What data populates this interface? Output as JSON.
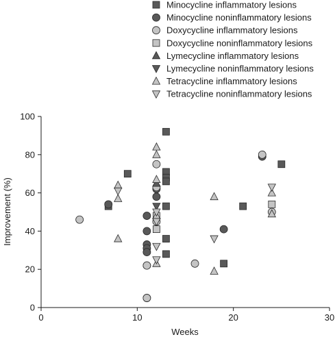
{
  "chart_data": {
    "type": "scatter",
    "title": "",
    "xlabel": "Weeks",
    "ylabel": "Improvement (%)",
    "xlim": [
      0,
      30
    ],
    "ylim": [
      0,
      100
    ],
    "xticks": [
      0,
      10,
      20,
      30
    ],
    "yticks": [
      0,
      20,
      40,
      60,
      80,
      100
    ],
    "grid": false,
    "legend_position": "top-right",
    "series": [
      {
        "name": "Minocycline inflammatory lesions",
        "marker": "square",
        "fill": "#595959",
        "points": [
          [
            7,
            53
          ],
          [
            9,
            70
          ],
          [
            13,
            92
          ],
          [
            13,
            71
          ],
          [
            13,
            68
          ],
          [
            13,
            66
          ],
          [
            13,
            53
          ],
          [
            13,
            36
          ],
          [
            13,
            28
          ],
          [
            19,
            23
          ],
          [
            21,
            53
          ],
          [
            25,
            75
          ]
        ]
      },
      {
        "name": "Minocycline noninflammatory lesions",
        "marker": "circle",
        "fill": "#595959",
        "points": [
          [
            7,
            54
          ],
          [
            11,
            48
          ],
          [
            11,
            40
          ],
          [
            11,
            33
          ],
          [
            11,
            31
          ],
          [
            11,
            29
          ],
          [
            11,
            22
          ],
          [
            11,
            5
          ],
          [
            12,
            62
          ],
          [
            12,
            58
          ],
          [
            19,
            41
          ],
          [
            23,
            79
          ]
        ]
      },
      {
        "name": "Doxycycline inflammatory lesions",
        "marker": "circle",
        "fill": "#c4c4c4",
        "points": [
          [
            4,
            46
          ],
          [
            11,
            5
          ],
          [
            11,
            22
          ],
          [
            12,
            75
          ],
          [
            12,
            63
          ],
          [
            12,
            45
          ],
          [
            16,
            23
          ],
          [
            23,
            80
          ],
          [
            24,
            50
          ]
        ]
      },
      {
        "name": "Doxycycline noninflammatory lesions",
        "marker": "square",
        "fill": "#c4c4c4",
        "points": [
          [
            12,
            48
          ],
          [
            12,
            41
          ],
          [
            24,
            54
          ]
        ]
      },
      {
        "name": "Lymecycline inflammatory lesions",
        "marker": "triangle-up",
        "fill": "#595959",
        "points": [
          [
            12,
            65
          ]
        ]
      },
      {
        "name": "Lymecycline noninflammatory lesions",
        "marker": "triangle-down",
        "fill": "#595959",
        "points": [
          [
            12,
            53
          ]
        ]
      },
      {
        "name": "Tetracycline inflammatory lesions",
        "marker": "triangle-up",
        "fill": "#c4c4c4",
        "points": [
          [
            8,
            64
          ],
          [
            8,
            57
          ],
          [
            8,
            36
          ],
          [
            12,
            84
          ],
          [
            12,
            80
          ],
          [
            12,
            67
          ],
          [
            12,
            48
          ],
          [
            12,
            23
          ],
          [
            18,
            58
          ],
          [
            18,
            19
          ],
          [
            24,
            60
          ],
          [
            24,
            49
          ]
        ]
      },
      {
        "name": "Tetracycline noninflammatory lesions",
        "marker": "triangle-down",
        "fill": "#c4c4c4",
        "points": [
          [
            8,
            61
          ],
          [
            12,
            50
          ],
          [
            12,
            45
          ],
          [
            12,
            32
          ],
          [
            12,
            25
          ],
          [
            18,
            36
          ],
          [
            24,
            63
          ]
        ]
      }
    ]
  }
}
